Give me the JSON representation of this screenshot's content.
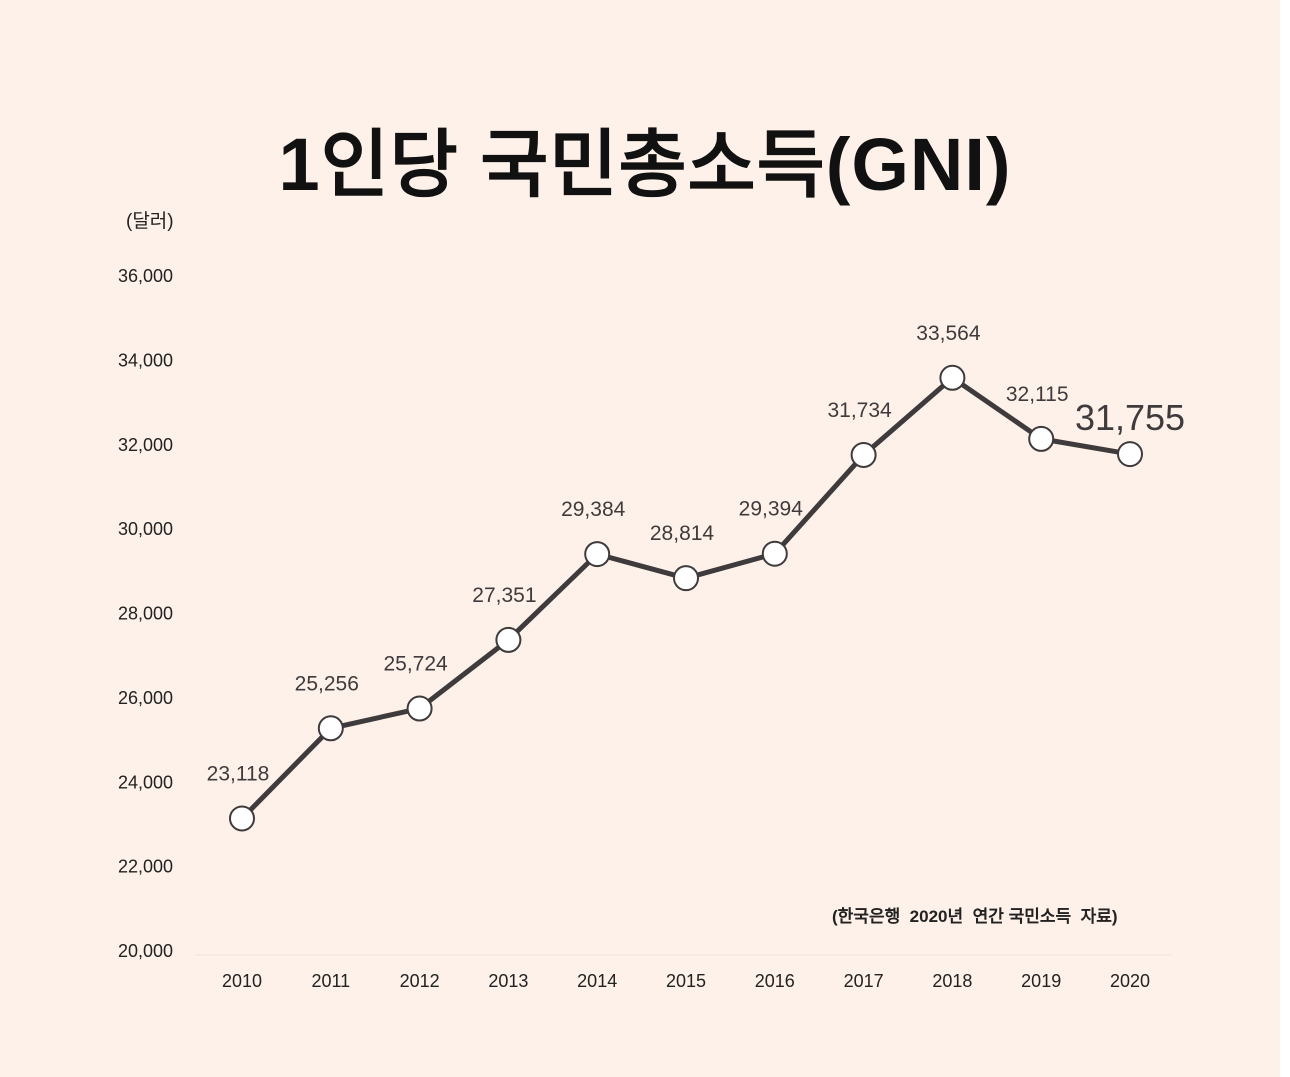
{
  "chart_data": {
    "type": "line",
    "title": "1인당 국민총소득(GNI)",
    "ylabel": "(달러)",
    "source_note": "(한국은행  2020년  연간 국민소득  자료)",
    "categories": [
      "2010",
      "2011",
      "2012",
      "2013",
      "2014",
      "2015",
      "2016",
      "2017",
      "2018",
      "2019",
      "2020"
    ],
    "values": [
      23118,
      25256,
      25724,
      27351,
      29384,
      28814,
      29394,
      31734,
      33564,
      32115,
      31755
    ],
    "value_labels": [
      "23,118",
      "25,256",
      "25,724",
      "27,351",
      "29,384",
      "28,814",
      "29,394",
      "31,734",
      "33,564",
      "32,115",
      "31,755"
    ],
    "yticks": [
      20000,
      22000,
      24000,
      26000,
      28000,
      30000,
      32000,
      34000,
      36000
    ],
    "ytick_labels": [
      "20,000",
      "22,000",
      "24,000",
      "26,000",
      "28,000",
      "30,000",
      "32,000",
      "34,000",
      "36,000"
    ],
    "ylim": [
      20000,
      36000
    ],
    "highlight_last": true,
    "colors": {
      "line": "#3f3a3b",
      "marker_fill": "#ffffff",
      "text": "#3f3a3b",
      "background": "#fdf1e9"
    }
  }
}
